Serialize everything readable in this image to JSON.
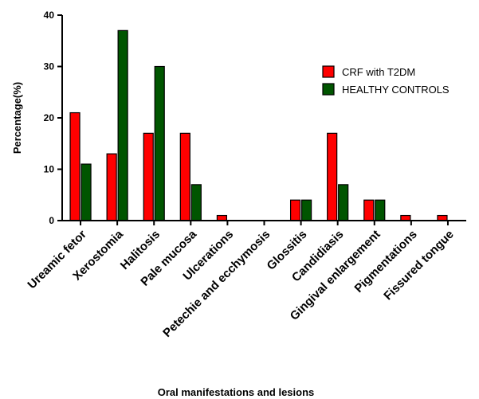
{
  "chart_data": {
    "type": "bar",
    "title": "",
    "xlabel": "Oral manifestations and lesions",
    "ylabel": "Percentage(%)",
    "ylim": [
      0,
      40
    ],
    "yticks": [
      "0",
      "10",
      "20",
      "30",
      "40"
    ],
    "grid": false,
    "legend_position": "top-right",
    "categories": [
      "Ureamic fetor",
      "Xerostomia",
      "Halitosis",
      "Pale mucosa",
      "Ulcerations",
      "Petechie and ecchymosis",
      "Glossitis",
      "Candidiasis",
      "Gingival enlargement",
      "Pigmentations",
      "Fissured tongue"
    ],
    "series": [
      {
        "name": "CRF with T2DM",
        "color": "#ff0000",
        "values": [
          21,
          13,
          17,
          17,
          1,
          0,
          4,
          17,
          4,
          1,
          1
        ]
      },
      {
        "name": "HEALTHY CONTROLS",
        "color": "#005500",
        "values": [
          11,
          37,
          30,
          7,
          0,
          0,
          4,
          7,
          4,
          0,
          0
        ]
      }
    ]
  }
}
